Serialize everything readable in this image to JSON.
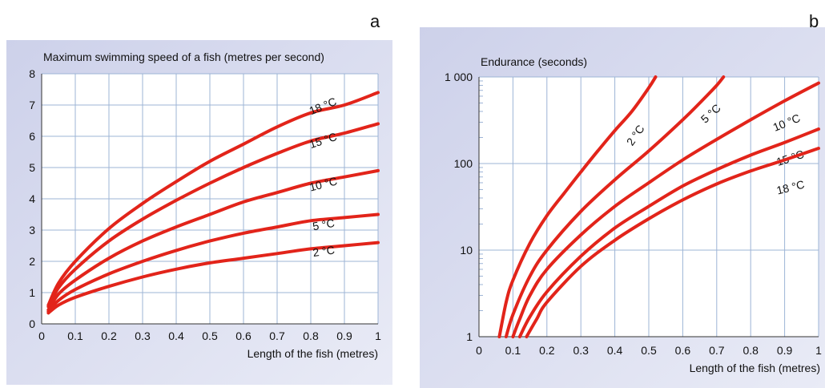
{
  "panels": [
    {
      "letter": "a"
    },
    {
      "letter": "b"
    }
  ],
  "chart_data": [
    {
      "type": "line",
      "panel": "a",
      "title": "",
      "ylabel": "Maximum swimming speed of a fish (metres per second)",
      "xlabel": "Length of the fish (metres)",
      "xlim": [
        0,
        1
      ],
      "ylim": [
        0,
        8
      ],
      "x_ticks": [
        0,
        0.1,
        0.2,
        0.3,
        0.4,
        0.5,
        0.6,
        0.7,
        0.8,
        0.9,
        1
      ],
      "x_tick_labels": [
        "0",
        "0.1",
        "0.2",
        "0.3",
        "0.4",
        "0.5",
        "0.6",
        "0.7",
        "0.8",
        "0.9",
        "1"
      ],
      "y_ticks": [
        0,
        1,
        2,
        3,
        4,
        5,
        6,
        7,
        8
      ],
      "y_tick_labels": [
        "0",
        "1",
        "2",
        "3",
        "4",
        "5",
        "6",
        "7",
        "8"
      ],
      "grid": true,
      "series": [
        {
          "name": "18 °C",
          "x": [
            0.02,
            0.05,
            0.1,
            0.2,
            0.3,
            0.4,
            0.5,
            0.6,
            0.7,
            0.8,
            0.9,
            1.0
          ],
          "y": [
            0.6,
            1.3,
            2.0,
            3.05,
            3.85,
            4.55,
            5.2,
            5.75,
            6.3,
            6.75,
            7.0,
            7.4
          ]
        },
        {
          "name": "15 °C",
          "x": [
            0.02,
            0.05,
            0.1,
            0.2,
            0.3,
            0.4,
            0.5,
            0.6,
            0.7,
            0.8,
            0.9,
            1.0
          ],
          "y": [
            0.55,
            1.15,
            1.75,
            2.65,
            3.35,
            3.95,
            4.5,
            5.0,
            5.45,
            5.85,
            6.1,
            6.4
          ]
        },
        {
          "name": "10 °C",
          "x": [
            0.02,
            0.05,
            0.1,
            0.2,
            0.3,
            0.4,
            0.5,
            0.6,
            0.7,
            0.8,
            0.9,
            1.0
          ],
          "y": [
            0.45,
            0.95,
            1.4,
            2.1,
            2.65,
            3.1,
            3.5,
            3.9,
            4.2,
            4.5,
            4.7,
            4.9
          ]
        },
        {
          "name": "5 °C",
          "x": [
            0.02,
            0.05,
            0.1,
            0.2,
            0.3,
            0.4,
            0.5,
            0.6,
            0.7,
            0.8,
            0.9,
            1.0
          ],
          "y": [
            0.4,
            0.75,
            1.1,
            1.6,
            2.0,
            2.35,
            2.65,
            2.9,
            3.1,
            3.3,
            3.4,
            3.5
          ]
        },
        {
          "name": "2 °C",
          "x": [
            0.02,
            0.05,
            0.1,
            0.2,
            0.3,
            0.4,
            0.5,
            0.6,
            0.7,
            0.8,
            0.9,
            1.0
          ],
          "y": [
            0.35,
            0.6,
            0.85,
            1.2,
            1.5,
            1.75,
            1.95,
            2.1,
            2.25,
            2.4,
            2.5,
            2.6
          ]
        }
      ]
    },
    {
      "type": "line",
      "panel": "b",
      "title": "",
      "ylabel": "Endurance (seconds)",
      "xlabel": "Length of the fish (metres)",
      "xlim": [
        0,
        1
      ],
      "ylim": [
        1,
        1000
      ],
      "yscale": "log",
      "x_ticks": [
        0,
        0.1,
        0.2,
        0.3,
        0.4,
        0.5,
        0.6,
        0.7,
        0.8,
        0.9,
        1
      ],
      "x_tick_labels": [
        "0",
        "0.1",
        "0.2",
        "0.3",
        "0.4",
        "0.5",
        "0.6",
        "0.7",
        "0.8",
        "0.9",
        "1"
      ],
      "y_ticks": [
        1,
        10,
        100,
        1000
      ],
      "y_tick_labels": [
        "1",
        "10",
        "100",
        "1 000"
      ],
      "grid": true,
      "series": [
        {
          "name": "2 °C",
          "x": [
            0.06,
            0.08,
            0.1,
            0.15,
            0.2,
            0.25,
            0.3,
            0.35,
            0.4,
            0.45,
            0.5,
            0.52
          ],
          "y": [
            1,
            2.5,
            4.5,
            12,
            25,
            45,
            80,
            140,
            240,
            400,
            750,
            1000
          ]
        },
        {
          "name": "5 °C",
          "x": [
            0.08,
            0.1,
            0.15,
            0.2,
            0.3,
            0.4,
            0.5,
            0.6,
            0.65,
            0.7,
            0.72
          ],
          "y": [
            1,
            1.8,
            5,
            10,
            28,
            65,
            140,
            320,
            500,
            800,
            1000
          ]
        },
        {
          "name": "10 °C",
          "x": [
            0.1,
            0.12,
            0.15,
            0.2,
            0.3,
            0.4,
            0.5,
            0.6,
            0.7,
            0.8,
            0.9,
            1.0
          ],
          "y": [
            1,
            1.6,
            3,
            6,
            15,
            32,
            60,
            110,
            190,
            320,
            530,
            850
          ]
        },
        {
          "name": "15 °C",
          "x": [
            0.12,
            0.15,
            0.2,
            0.3,
            0.4,
            0.5,
            0.6,
            0.7,
            0.8,
            0.9,
            1.0
          ],
          "y": [
            1,
            1.7,
            3.3,
            8.5,
            18,
            32,
            55,
            85,
            125,
            175,
            250
          ]
        },
        {
          "name": "18 °C",
          "x": [
            0.14,
            0.17,
            0.2,
            0.3,
            0.4,
            0.5,
            0.6,
            0.7,
            0.8,
            0.9,
            1.0
          ],
          "y": [
            1,
            1.6,
            2.5,
            6.5,
            13,
            23,
            38,
            58,
            82,
            110,
            150
          ]
        }
      ]
    }
  ]
}
